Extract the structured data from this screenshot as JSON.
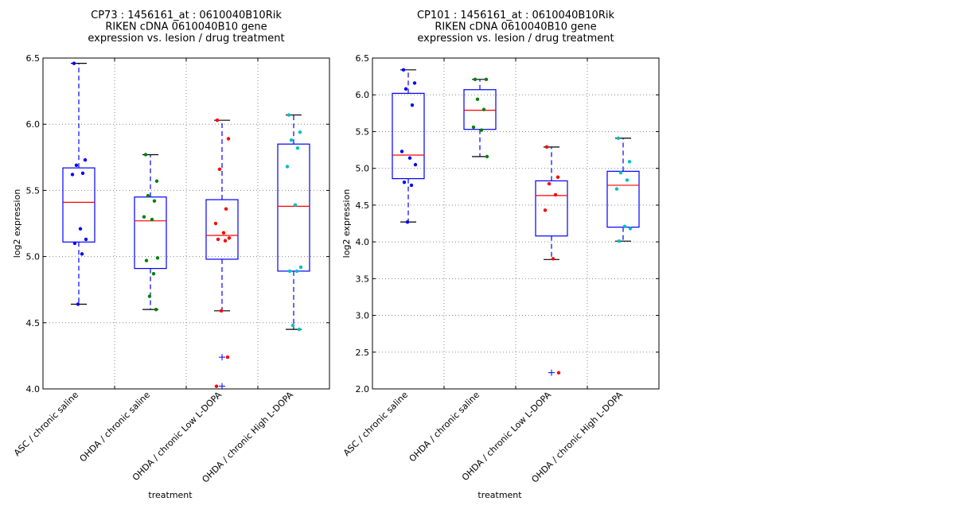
{
  "chart_data": [
    {
      "type": "box",
      "title_lines": [
        "CP73 : 1456161_at : 0610040B10Rik",
        "RIKEN cDNA 0610040B10 gene",
        "expression vs. lesion / drug treatment"
      ],
      "xlabel": "treatment",
      "ylabel": "log2 expression",
      "ylim": [
        4.0,
        6.5
      ],
      "yticks": [
        4.0,
        4.5,
        5.0,
        5.5,
        6.0,
        6.5
      ],
      "ytick_labels": [
        "4.0",
        "4.5",
        "5.0",
        "5.5",
        "6.0",
        "6.5"
      ],
      "grid": true,
      "categories": [
        "ASC / chronic saline",
        "OHDA / chronic saline",
        "OHDA / chronic Low L-DOPA",
        "OHDA / chronic High L-DOPA"
      ],
      "groups": [
        {
          "color": "#0000ff",
          "q1": 5.11,
          "median": 5.41,
          "q3": 5.67,
          "whisker_low": 4.64,
          "whisker_high": 6.46,
          "outliers": [],
          "points": [
            6.46,
            5.73,
            5.69,
            5.63,
            5.62,
            5.21,
            5.13,
            5.1,
            5.02,
            4.64
          ]
        },
        {
          "color": "#008000",
          "q1": 4.91,
          "median": 5.27,
          "q3": 5.45,
          "whisker_low": 4.6,
          "whisker_high": 5.77,
          "outliers": [],
          "points": [
            5.77,
            5.57,
            5.46,
            5.42,
            5.3,
            5.28,
            4.99,
            4.97,
            4.87,
            4.7,
            4.6
          ]
        },
        {
          "color": "#ff0000",
          "q1": 4.98,
          "median": 5.16,
          "q3": 5.43,
          "whisker_low": 4.59,
          "whisker_high": 6.03,
          "outliers": [
            4.24,
            4.02
          ],
          "points": [
            6.03,
            5.89,
            5.66,
            5.36,
            5.25,
            5.18,
            5.14,
            5.13,
            5.12,
            4.59,
            4.24,
            4.02
          ]
        },
        {
          "color": "#00bfbf",
          "q1": 4.89,
          "median": 5.38,
          "q3": 5.85,
          "whisker_low": 4.45,
          "whisker_high": 6.07,
          "outliers": [],
          "points": [
            6.07,
            5.94,
            5.88,
            5.82,
            5.68,
            5.39,
            4.92,
            4.89,
            4.89,
            4.48,
            4.45
          ]
        }
      ]
    },
    {
      "type": "box",
      "title_lines": [
        "CP101 : 1456161_at : 0610040B10Rik",
        "RIKEN cDNA 0610040B10 gene",
        "expression vs. lesion / drug treatment"
      ],
      "xlabel": "treatment",
      "ylabel": "log2 expression",
      "ylim": [
        2.0,
        6.5
      ],
      "yticks": [
        2.0,
        2.5,
        3.0,
        3.5,
        4.0,
        4.5,
        5.0,
        5.5,
        6.0,
        6.5
      ],
      "ytick_labels": [
        "2.0",
        "2.5",
        "3.0",
        "3.5",
        "4.0",
        "4.5",
        "5.0",
        "5.5",
        "6.0",
        "6.5"
      ],
      "grid": true,
      "categories": [
        "ASC / chronic saline",
        "OHDA / chronic saline",
        "OHDA / chronic Low L-DOPA",
        "OHDA / chronic High L-DOPA"
      ],
      "groups": [
        {
          "color": "#0000ff",
          "q1": 4.86,
          "median": 5.18,
          "q3": 6.02,
          "whisker_low": 4.27,
          "whisker_high": 6.34,
          "outliers": [],
          "points": [
            6.34,
            6.16,
            6.08,
            5.86,
            5.23,
            5.14,
            5.05,
            4.81,
            4.77,
            4.27
          ]
        },
        {
          "color": "#008000",
          "q1": 5.53,
          "median": 5.79,
          "q3": 6.07,
          "whisker_low": 5.16,
          "whisker_high": 6.21,
          "outliers": [],
          "points": [
            6.21,
            6.21,
            5.94,
            5.8,
            5.56,
            5.52,
            5.16
          ]
        },
        {
          "color": "#ff0000",
          "q1": 4.08,
          "median": 4.63,
          "q3": 4.83,
          "whisker_low": 3.76,
          "whisker_high": 5.29,
          "outliers": [
            2.22
          ],
          "points": [
            5.29,
            4.88,
            4.79,
            4.64,
            4.43,
            3.77,
            2.22
          ]
        },
        {
          "color": "#00bfbf",
          "q1": 4.2,
          "median": 4.77,
          "q3": 4.96,
          "whisker_low": 4.01,
          "whisker_high": 5.41,
          "outliers": [],
          "points": [
            5.41,
            5.09,
            4.94,
            4.84,
            4.72,
            4.21,
            4.18,
            4.01
          ]
        }
      ]
    }
  ]
}
